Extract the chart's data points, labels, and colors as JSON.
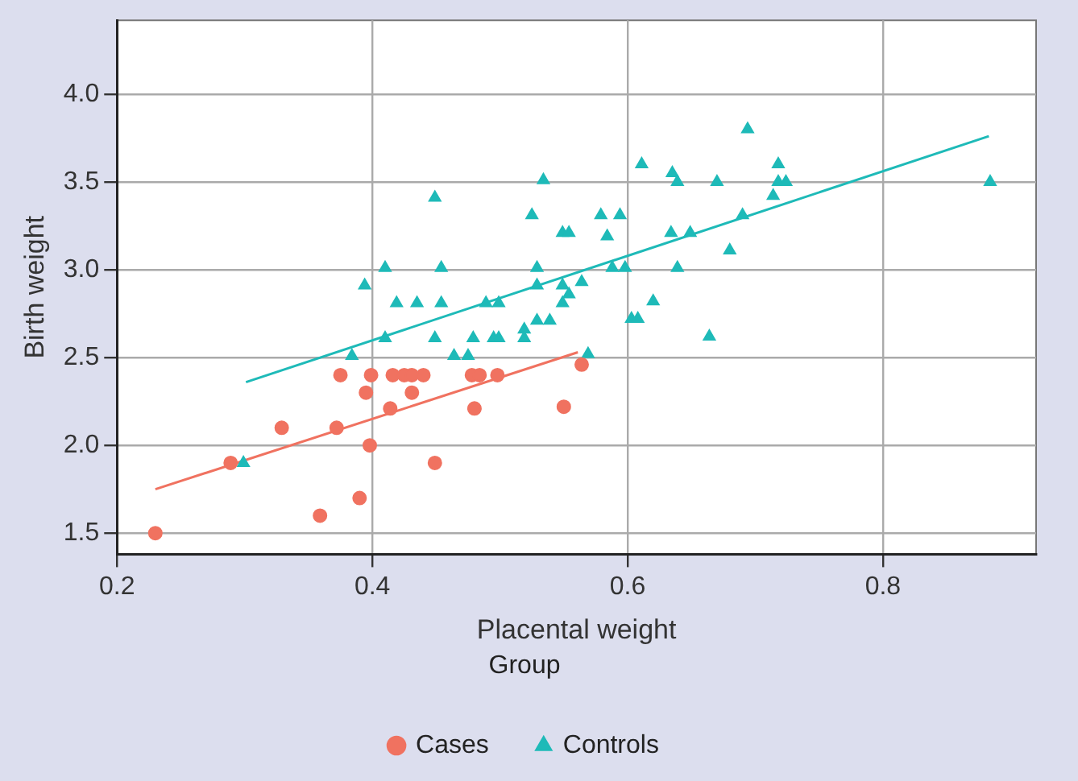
{
  "chart_data": {
    "type": "scatter",
    "xlabel": "Placental weight",
    "ylabel": "Birth weight",
    "legend_title": "Group",
    "legend": "bottom",
    "grid": true,
    "xlim": [
      0.2,
      0.92
    ],
    "xticks": [
      {
        "value": 0.2,
        "label": "0.2"
      },
      {
        "value": 0.4,
        "label": "0.4"
      },
      {
        "value": 0.6,
        "label": "0.6"
      },
      {
        "value": 0.8,
        "label": "0.8"
      }
    ],
    "ylim": [
      1.38,
      4.42
    ],
    "yticks": [
      {
        "value": 1.5,
        "label": "1.5"
      },
      {
        "value": 2,
        "label": "2.0"
      },
      {
        "value": 2.5,
        "label": "2.5"
      },
      {
        "value": 3,
        "label": "3.0"
      },
      {
        "value": 3.5,
        "label": "3.5"
      },
      {
        "value": 4,
        "label": "4.0"
      }
    ],
    "series": [
      {
        "name": "Cases",
        "type": "scatter",
        "marker": "circle",
        "color": "#f07260",
        "x": [
          0.23,
          0.289,
          0.329,
          0.359,
          0.372,
          0.375,
          0.39,
          0.395,
          0.398,
          0.399,
          0.414,
          0.416,
          0.425,
          0.431,
          0.431,
          0.44,
          0.449,
          0.478,
          0.48,
          0.484,
          0.498,
          0.55,
          0.564
        ],
        "values": [
          1.5,
          1.9,
          2.1,
          1.6,
          2.1,
          2.4,
          1.7,
          2.3,
          2.0,
          2.4,
          2.21,
          2.4,
          2.4,
          2.4,
          2.3,
          2.4,
          1.9,
          2.4,
          2.21,
          2.4,
          2.4,
          2.22,
          2.46
        ]
      },
      {
        "name": "Controls",
        "type": "scatter",
        "marker": "triangle",
        "color": "#1ebab8",
        "x": [
          0.299,
          0.384,
          0.394,
          0.41,
          0.41,
          0.419,
          0.435,
          0.449,
          0.449,
          0.454,
          0.454,
          0.464,
          0.475,
          0.479,
          0.489,
          0.495,
          0.499,
          0.499,
          0.519,
          0.519,
          0.525,
          0.529,
          0.529,
          0.529,
          0.534,
          0.539,
          0.549,
          0.554,
          0.549,
          0.554,
          0.549,
          0.564,
          0.569,
          0.579,
          0.594,
          0.584,
          0.588,
          0.598,
          0.603,
          0.608,
          0.611,
          0.62,
          0.634,
          0.635,
          0.639,
          0.639,
          0.649,
          0.664,
          0.67,
          0.68,
          0.69,
          0.694,
          0.714,
          0.718,
          0.718,
          0.724,
          0.884
        ],
        "values": [
          1.9,
          2.51,
          2.91,
          3.01,
          2.61,
          2.81,
          2.81,
          3.41,
          2.61,
          3.01,
          2.81,
          2.51,
          2.51,
          2.61,
          2.81,
          2.61,
          2.81,
          2.61,
          2.66,
          2.61,
          3.31,
          3.01,
          2.91,
          2.71,
          3.51,
          2.71,
          3.21,
          3.21,
          2.91,
          2.86,
          2.81,
          2.93,
          2.52,
          3.31,
          3.31,
          3.19,
          3.01,
          3.01,
          2.72,
          2.72,
          3.6,
          2.82,
          3.21,
          3.55,
          3.5,
          3.01,
          3.21,
          2.62,
          3.5,
          3.11,
          3.31,
          3.8,
          3.42,
          3.6,
          3.5,
          3.5,
          3.5
        ]
      },
      {
        "type": "line",
        "marker": "none",
        "color": "#f07260",
        "x": [
          0.23,
          0.561
        ],
        "values": [
          1.75,
          2.53
        ]
      },
      {
        "type": "line",
        "marker": "none",
        "color": "#1ebab8",
        "x": [
          0.301,
          0.883
        ],
        "values": [
          2.36,
          3.76
        ]
      }
    ]
  }
}
